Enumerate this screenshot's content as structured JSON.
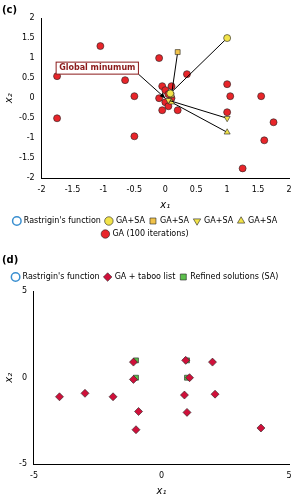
{
  "chart_data": [
    {
      "type": "scatter",
      "title": "(c)",
      "x_label": "x₁",
      "y_label": "x₂",
      "xlim": [
        -2,
        2
      ],
      "xticks": [
        -2,
        -1.5,
        -1,
        -0.5,
        0,
        0.5,
        1,
        1.5,
        2
      ],
      "ylim": [
        -2,
        2
      ],
      "yticks": [
        -2,
        -1.5,
        -1,
        -0.5,
        0,
        0.5,
        1,
        1.5,
        2
      ],
      "grid": false,
      "legend": "bottom",
      "annotations": [
        {
          "text": "Global minumum",
          "x": -1.1,
          "y": 0.75,
          "arrow_to": [
            0,
            0
          ]
        }
      ],
      "series": [
        {
          "name": "Rastrigin's function",
          "type": "contour",
          "marker": "circle",
          "color": "#3a8fd0",
          "x": [],
          "values": []
        },
        {
          "name": "GA+SA",
          "type": "line",
          "marker": "circle",
          "color": "#f2e34a",
          "x": [
            1,
            0.08
          ],
          "values": [
            1.5,
            0.12
          ]
        },
        {
          "name": "GA+SA",
          "type": "line",
          "marker": "square",
          "color": "#f0c24a",
          "x": [
            0.2,
            0.1
          ],
          "values": [
            1.15,
            0.08
          ]
        },
        {
          "name": "GA+SA",
          "type": "line",
          "marker": "triangle-down",
          "color": "#f2e34a",
          "x": [
            1,
            0.05
          ],
          "values": [
            -0.5,
            -0.05
          ]
        },
        {
          "name": "GA+SA",
          "type": "line",
          "marker": "triangle",
          "color": "#f2e34a",
          "x": [
            1,
            0.1
          ],
          "values": [
            -0.85,
            -0.1
          ]
        },
        {
          "name": "GA (100 iterations)",
          "type": "scatter",
          "marker": "circle",
          "color": "#e8252a",
          "x": [
            -1.75,
            -1.75,
            -1.05,
            -0.65,
            -0.5,
            -0.5,
            -0.1,
            -0.05,
            0,
            0.05,
            -0.1,
            0.1,
            0,
            0.05,
            -0.05,
            0.1,
            0.2,
            0.35,
            1.0,
            1.05,
            1.0,
            1.25,
            1.55,
            1.6,
            1.75
          ],
          "values": [
            0.55,
            -0.5,
            1.3,
            0.45,
            0.05,
            -0.95,
            1.0,
            0.3,
            0.2,
            0.1,
            0,
            0,
            -0.1,
            -0.2,
            -0.3,
            0.3,
            -0.3,
            0.6,
            0.35,
            0.05,
            -0.35,
            -1.75,
            0.05,
            -1.05,
            -0.6
          ]
        }
      ]
    },
    {
      "type": "scatter",
      "title": "(d)",
      "x_label": "x₁",
      "y_label": "x₂",
      "xlim": [
        -5,
        5
      ],
      "xticks": [
        -5,
        0,
        5
      ],
      "ylim": [
        -5,
        5
      ],
      "yticks": [
        -5,
        0,
        5
      ],
      "grid": false,
      "legend": "top",
      "series": [
        {
          "name": "Rastrigin's function",
          "type": "contour",
          "marker": "circle",
          "color": "#3a8fd0",
          "x": [],
          "values": []
        },
        {
          "name": "GA + taboo list",
          "type": "scatter",
          "marker": "diamond",
          "color": "#d0103a",
          "x": [
            -4,
            -3,
            -1.9,
            -1.1,
            -1.1,
            -0.9,
            -1.0,
            0.95,
            1.1,
            0.9,
            2.0,
            2.1,
            1.0,
            3.9
          ],
          "values": [
            -1.1,
            -0.9,
            -1.1,
            0.9,
            -0.1,
            -1.95,
            -3.0,
            1.0,
            0,
            -1.0,
            0.9,
            -0.95,
            -2.0,
            -2.9
          ]
        },
        {
          "name": "Refined solutions (SA)",
          "type": "scatter",
          "marker": "square",
          "color": "#5cc04c",
          "x": [
            -1,
            1,
            -1,
            1
          ],
          "values": [
            1,
            1,
            0,
            0
          ]
        }
      ]
    }
  ]
}
